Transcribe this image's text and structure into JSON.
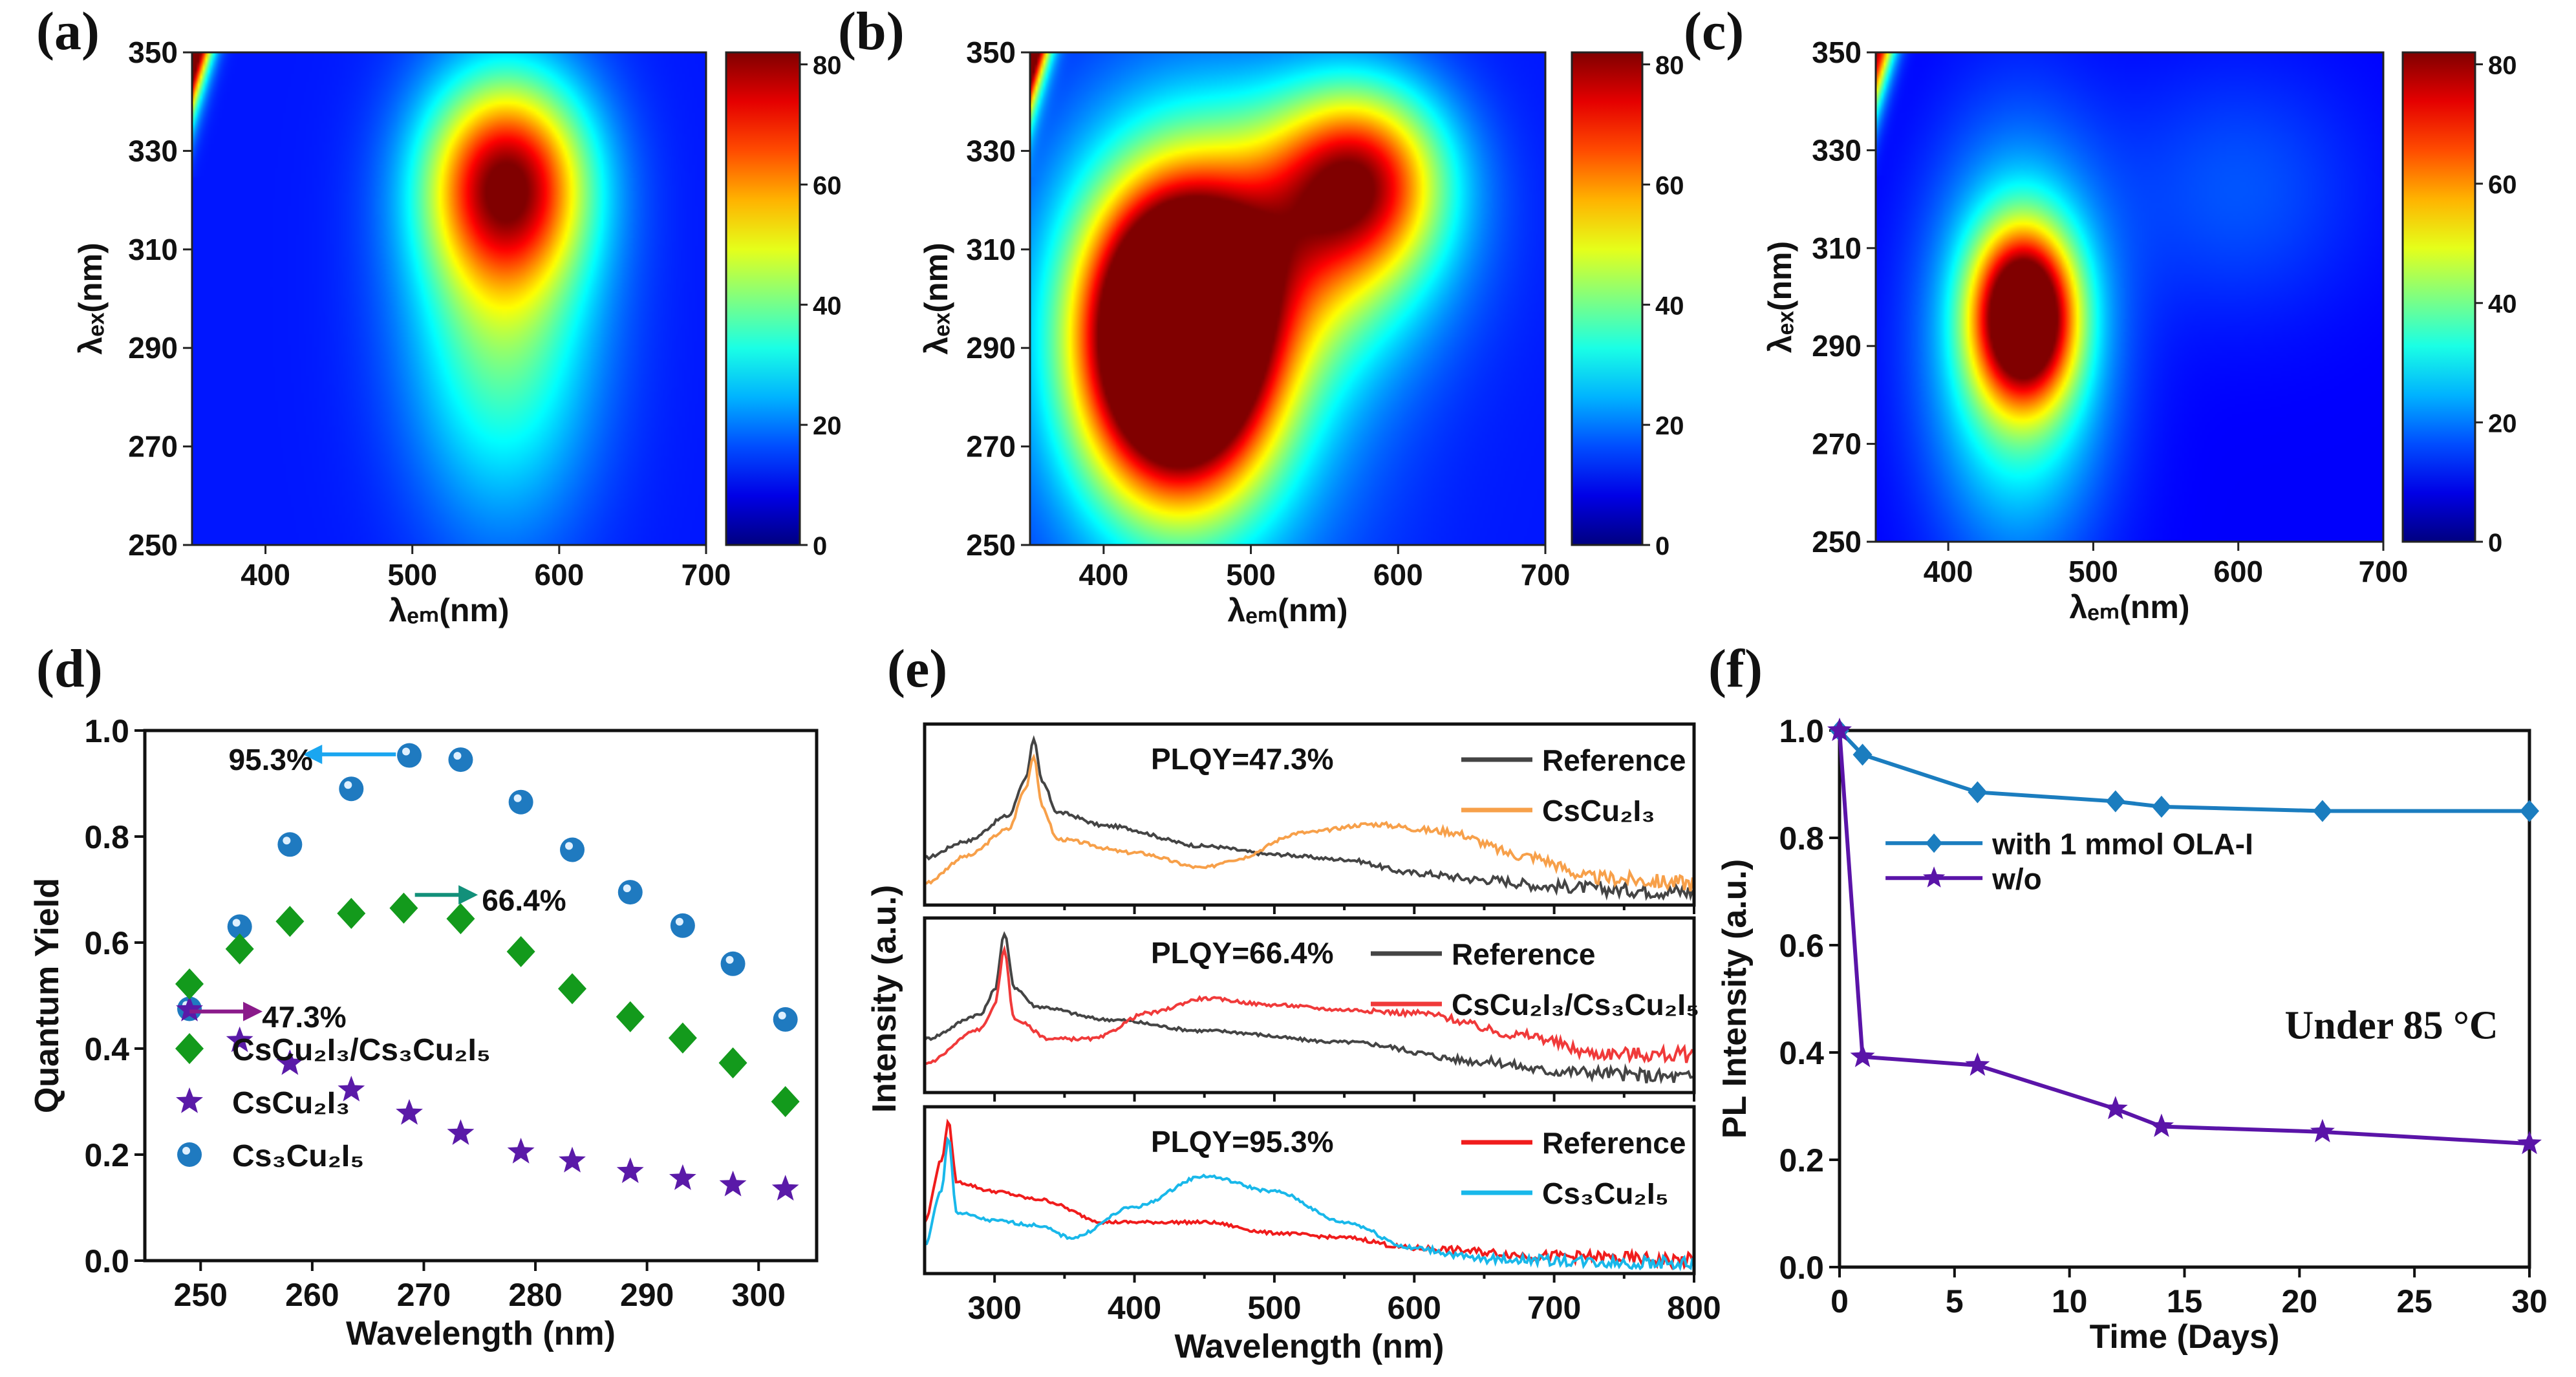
{
  "chart_data": [
    {
      "id": "a",
      "panel_label": "(a)",
      "type": "heatmap",
      "xlabel": "λₑₘ(nm)",
      "ylabel": "λₑₓ(nm)",
      "xlim": [
        350,
        700
      ],
      "ylim": [
        250,
        350
      ],
      "xticks": [
        "400",
        "500",
        "600",
        "700"
      ],
      "yticks": [
        "250",
        "270",
        "290",
        "310",
        "330",
        "350"
      ],
      "colorbar": {
        "min": 0,
        "max": 82,
        "ticks": [
          "0",
          "20",
          "40",
          "60",
          "80"
        ]
      },
      "background": 12,
      "features": [
        {
          "em": 565,
          "ex": 324,
          "amp": 52,
          "sigma_em": 38,
          "sigma_ex": 14
        },
        {
          "em": 562,
          "ex": 300,
          "amp": 30,
          "sigma_em": 45,
          "sigma_ex": 30
        }
      ],
      "scatter_edge_amp": 95
    },
    {
      "id": "b",
      "panel_label": "(b)",
      "type": "heatmap",
      "xlabel": "λₑₘ(nm)",
      "ylabel": "λₑₓ(nm)",
      "xlim": [
        350,
        700
      ],
      "ylim": [
        250,
        350
      ],
      "xticks": [
        "400",
        "500",
        "600",
        "700"
      ],
      "yticks": [
        "250",
        "270",
        "290",
        "310",
        "330",
        "350"
      ],
      "colorbar": {
        "min": 0,
        "max": 82,
        "ticks": [
          "0",
          "20",
          "40",
          "60",
          "80"
        ]
      },
      "background": 12,
      "features": [
        {
          "em": 450,
          "ex": 292,
          "amp": 120,
          "sigma_em": 42,
          "sigma_ex": 20
        },
        {
          "em": 460,
          "ex": 290,
          "amp": 25,
          "sigma_em": 75,
          "sigma_ex": 35
        },
        {
          "em": 575,
          "ex": 325,
          "amp": 48,
          "sigma_em": 40,
          "sigma_ex": 13
        },
        {
          "em": 540,
          "ex": 312,
          "amp": 30,
          "sigma_em": 60,
          "sigma_ex": 18
        }
      ],
      "scatter_edge_amp": 95
    },
    {
      "id": "c",
      "panel_label": "(c)",
      "type": "heatmap",
      "xlabel": "λₑₘ(nm)",
      "ylabel": "λₑₓ(nm)",
      "xlim": [
        350,
        700
      ],
      "ylim": [
        250,
        350
      ],
      "xticks": [
        "400",
        "500",
        "600",
        "700"
      ],
      "yticks": [
        "250",
        "270",
        "290",
        "310",
        "330",
        "350"
      ],
      "colorbar": {
        "min": 0,
        "max": 82,
        "ticks": [
          "0",
          "20",
          "40",
          "60",
          "80"
        ]
      },
      "background": 10,
      "features": [
        {
          "em": 452,
          "ex": 296,
          "amp": 75,
          "sigma_em": 24,
          "sigma_ex": 12
        },
        {
          "em": 448,
          "ex": 290,
          "amp": 30,
          "sigma_em": 42,
          "sigma_ex": 28
        },
        {
          "em": 600,
          "ex": 322,
          "amp": 7,
          "sigma_em": 60,
          "sigma_ex": 18
        }
      ],
      "scatter_edge_amp": 70
    },
    {
      "id": "d",
      "panel_label": "(d)",
      "type": "scatter",
      "xlabel": "Wavelength (nm)",
      "ylabel": "Quantum Yield",
      "xlim": [
        245,
        305.2
      ],
      "ylim": [
        0,
        1.0
      ],
      "xticks": [
        250,
        260,
        270,
        280,
        290,
        300
      ],
      "yticks": [
        "0.0",
        "0.2",
        "0.4",
        "0.6",
        "0.8",
        "1.0"
      ],
      "legend_position": "bottom-left",
      "series": [
        {
          "name": "Cs₃Cu₂I₅",
          "marker": "sphere",
          "color": "#1f7ac0",
          "x": [
            249,
            253.5,
            258,
            263.5,
            268.7,
            273.3,
            278.7,
            283.3,
            288.5,
            293.2,
            297.7,
            302.4
          ],
          "y": [
            0.475,
            0.63,
            0.785,
            0.89,
            0.953,
            0.945,
            0.865,
            0.775,
            0.695,
            0.632,
            0.56,
            0.455
          ]
        },
        {
          "name": "CsCu₂I₃",
          "marker": "star",
          "color": "#5a1aa8",
          "x": [
            249,
            253.5,
            258,
            263.5,
            268.7,
            273.3,
            278.7,
            283.3,
            288.5,
            293.2,
            297.7,
            302.4
          ],
          "y": [
            0.473,
            0.415,
            0.372,
            0.322,
            0.278,
            0.24,
            0.205,
            0.188,
            0.168,
            0.155,
            0.143,
            0.135
          ]
        },
        {
          "name": "CsCu₂I₃/Cs₃Cu₂I₅",
          "marker": "diamond",
          "color": "#139a1c",
          "x": [
            249,
            253.5,
            258,
            263.5,
            268.2,
            273.3,
            278.7,
            283.3,
            288.5,
            293.2,
            297.7,
            302.4
          ],
          "y": [
            0.522,
            0.588,
            0.64,
            0.655,
            0.665,
            0.645,
            0.583,
            0.513,
            0.46,
            0.42,
            0.373,
            0.3
          ]
        }
      ],
      "annotations": [
        {
          "text": "95.3%",
          "color": "#1aa6f0",
          "arrow_from": [
            267.5,
            0.955
          ],
          "arrow_to": [
            259.5,
            0.955
          ],
          "text_at": [
            252.5,
            0.945
          ]
        },
        {
          "text": "66.4%",
          "color": "#12907a",
          "arrow_from": [
            269.2,
            0.69
          ],
          "arrow_to": [
            274.5,
            0.69
          ],
          "text_at": [
            275.2,
            0.68
          ]
        },
        {
          "text": "47.3%",
          "color": "#8a1a8a",
          "arrow_from": [
            249,
            0.47
          ],
          "arrow_to": [
            255.2,
            0.47
          ],
          "text_at": [
            255.5,
            0.46
          ]
        }
      ]
    },
    {
      "id": "e",
      "panel_label": "(e)",
      "type": "line",
      "xlabel": "Wavelength (nm)",
      "ylabel": "Intensity (a.u.)",
      "xlim": [
        250,
        800
      ],
      "xticks": [
        300,
        400,
        500,
        600,
        700,
        800
      ],
      "subplots": [
        {
          "annotation": "PLQY=47.3%",
          "series": [
            {
              "name": "Reference",
              "color": "#444444",
              "points": [
                [
                  250,
                  0.25
                ],
                [
                  280,
                  0.35
                ],
                [
                  310,
                  0.5
                ],
                [
                  322,
                  0.72
                ],
                [
                  328,
                  0.95
                ],
                [
                  334,
                  0.7
                ],
                [
                  345,
                  0.52
                ],
                [
                  380,
                  0.44
                ],
                [
                  450,
                  0.32
                ],
                [
                  500,
                  0.27
                ],
                [
                  550,
                  0.24
                ],
                [
                  600,
                  0.16
                ],
                [
                  650,
                  0.12
                ],
                [
                  700,
                  0.08
                ],
                [
                  750,
                  0.06
                ],
                [
                  800,
                  0.05
                ]
              ]
            },
            {
              "name": "CsCu₂I₃",
              "color": "#f7a04a",
              "points": [
                [
                  250,
                  0.1
                ],
                [
                  280,
                  0.26
                ],
                [
                  310,
                  0.42
                ],
                [
                  322,
                  0.66
                ],
                [
                  328,
                  0.86
                ],
                [
                  334,
                  0.55
                ],
                [
                  345,
                  0.36
                ],
                [
                  400,
                  0.28
                ],
                [
                  450,
                  0.19
                ],
                [
                  470,
                  0.24
                ],
                [
                  520,
                  0.4
                ],
                [
                  570,
                  0.45
                ],
                [
                  620,
                  0.41
                ],
                [
                  680,
                  0.26
                ],
                [
                  730,
                  0.13
                ],
                [
                  800,
                  0.1
                ]
              ]
            }
          ]
        },
        {
          "annotation": "PLQY=66.4%",
          "series": [
            {
              "name": "Reference",
              "color": "#444444",
              "points": [
                [
                  250,
                  0.3
                ],
                [
                  290,
                  0.45
                ],
                [
                  300,
                  0.6
                ],
                [
                  307,
                  0.95
                ],
                [
                  314,
                  0.62
                ],
                [
                  330,
                  0.5
                ],
                [
                  380,
                  0.42
                ],
                [
                  450,
                  0.35
                ],
                [
                  550,
                  0.28
                ],
                [
                  650,
                  0.16
                ],
                [
                  700,
                  0.1
                ],
                [
                  800,
                  0.06
                ]
              ]
            },
            {
              "name": "CsCu₂I₃/Cs₃Cu₂I₅",
              "color": "#f03a3a",
              "points": [
                [
                  250,
                  0.15
                ],
                [
                  290,
                  0.36
                ],
                [
                  300,
                  0.5
                ],
                [
                  307,
                  0.85
                ],
                [
                  314,
                  0.42
                ],
                [
                  340,
                  0.3
                ],
                [
                  370,
                  0.3
                ],
                [
                  410,
                  0.46
                ],
                [
                  450,
                  0.55
                ],
                [
                  500,
                  0.51
                ],
                [
                  550,
                  0.48
                ],
                [
                  600,
                  0.46
                ],
                [
                  680,
                  0.32
                ],
                [
                  730,
                  0.21
                ],
                [
                  800,
                  0.2
                ]
              ]
            }
          ]
        },
        {
          "annotation": "PLQY=95.3%",
          "series": [
            {
              "name": "Reference",
              "color": "#f01c1c",
              "points": [
                [
                  250,
                  0.3
                ],
                [
                  262,
                  0.7
                ],
                [
                  267,
                  0.95
                ],
                [
                  273,
                  0.56
                ],
                [
                  300,
                  0.5
                ],
                [
                  330,
                  0.45
                ],
                [
                  380,
                  0.3
                ],
                [
                  450,
                  0.3
                ],
                [
                  500,
                  0.23
                ],
                [
                  550,
                  0.2
                ],
                [
                  600,
                  0.13
                ],
                [
                  700,
                  0.08
                ],
                [
                  800,
                  0.05
                ]
              ]
            },
            {
              "name": "Cs₃Cu₂I₅",
              "color": "#19b8ea",
              "points": [
                [
                  250,
                  0.15
                ],
                [
                  262,
                  0.5
                ],
                [
                  267,
                  0.85
                ],
                [
                  273,
                  0.36
                ],
                [
                  300,
                  0.31
                ],
                [
                  330,
                  0.28
                ],
                [
                  355,
                  0.2
                ],
                [
                  400,
                  0.4
                ],
                [
                  450,
                  0.6
                ],
                [
                  500,
                  0.5
                ],
                [
                  550,
                  0.3
                ],
                [
                  600,
                  0.13
                ],
                [
                  650,
                  0.06
                ],
                [
                  800,
                  0.03
                ]
              ]
            }
          ]
        }
      ]
    },
    {
      "id": "f",
      "panel_label": "(f)",
      "type": "line",
      "xlabel": "Time (Days)",
      "ylabel": "PL Intensity (a.u.)",
      "xlim": [
        0,
        30
      ],
      "ylim": [
        0,
        1.0
      ],
      "xticks": [
        "0",
        "5",
        "10",
        "15",
        "20",
        "25",
        "30"
      ],
      "yticks": [
        "0.0",
        "0.2",
        "0.4",
        "0.6",
        "0.8",
        "1.0"
      ],
      "legend_position": "upper-left",
      "annotation": "Under 85 °C",
      "series": [
        {
          "name": "with 1 mmol  OLA-I",
          "marker": "diamond",
          "color": "#1b7dbf",
          "x": [
            0,
            1,
            6,
            12,
            14,
            21,
            30
          ],
          "y": [
            1.0,
            0.955,
            0.885,
            0.868,
            0.858,
            0.85,
            0.85
          ]
        },
        {
          "name": "w/o",
          "marker": "star",
          "color": "#5a14a8",
          "x": [
            0,
            1,
            6,
            12,
            14,
            21,
            30
          ],
          "y": [
            1.0,
            0.392,
            0.376,
            0.295,
            0.262,
            0.252,
            0.23
          ]
        }
      ]
    }
  ]
}
